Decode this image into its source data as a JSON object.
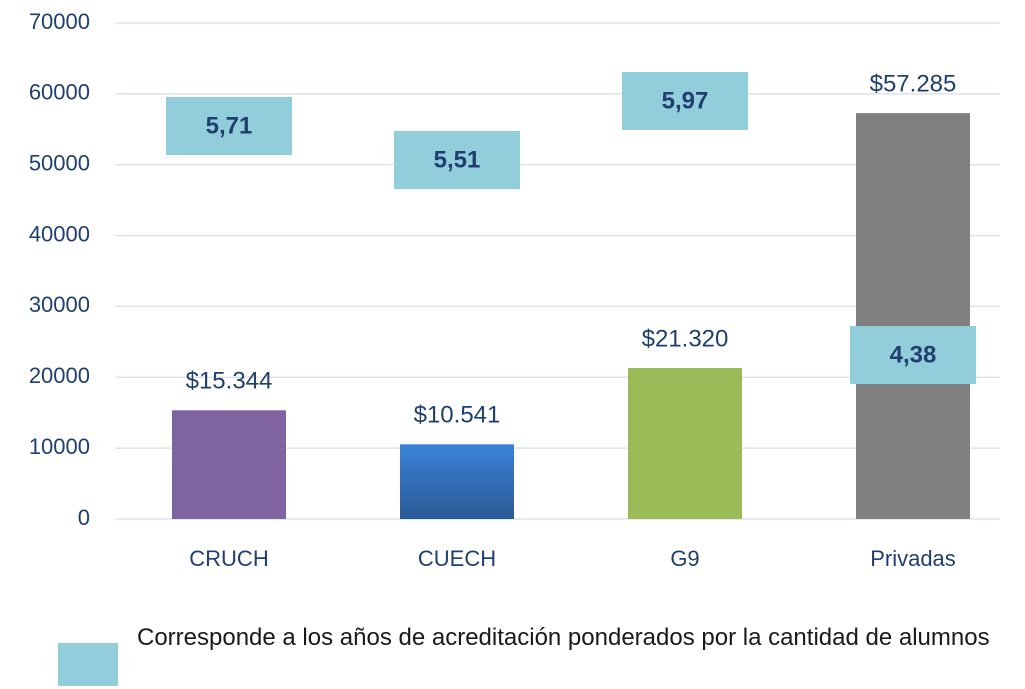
{
  "chart_data": {
    "type": "bar",
    "categories": [
      "CRUCH",
      "CUECH",
      "G9",
      "Privadas"
    ],
    "values": [
      15344,
      10541,
      21320,
      57285
    ],
    "value_labels": [
      "$15.344",
      "$10.541",
      "$21.320",
      "$57.285"
    ],
    "colors": [
      "#8064a2",
      "#3478d0",
      "#9bbb59",
      "#808080"
    ],
    "ylim": [
      0,
      70000
    ],
    "yticks": [
      0,
      10000,
      20000,
      30000,
      40000,
      50000,
      60000,
      70000
    ],
    "grid": true,
    "accreditation": {
      "name": "Corresponde a los años de acreditación ponderados por la cantidad de alumnos",
      "color": "#92cddc",
      "values": [
        5.71,
        5.51,
        5.97,
        4.38
      ],
      "value_labels": [
        "5,71",
        "5,51",
        "5,97",
        "4,38"
      ]
    }
  }
}
